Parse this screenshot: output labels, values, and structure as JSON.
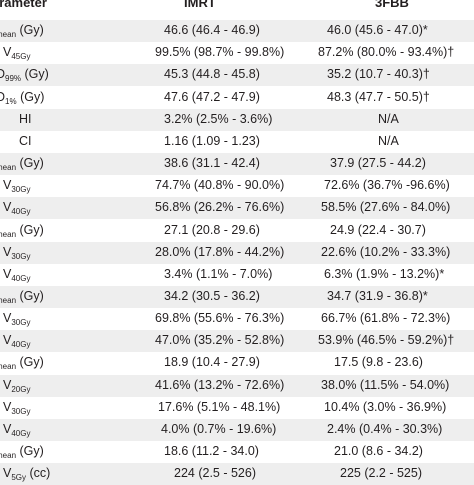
{
  "header": {
    "col0": "arameter",
    "col1": "IMRT",
    "col2": "3FBB"
  },
  "rows": [
    {
      "param": "mean",
      "sub": "",
      "unit": " (Gy)",
      "imrt": "46.6 (46.4 - 46.9)",
      "fbb": "46.0 (45.6 - 47.0)*"
    },
    {
      "param": "V",
      "sub": "45Gy",
      "unit": "",
      "imrt": "99.5% (98.7% - 99.8%)",
      "fbb": "87.2% (80.0% - 93.4%)†"
    },
    {
      "param": "D",
      "sub": "99%",
      "unit": " (Gy)",
      "imrt": "45.3 (44.8 - 45.8)",
      "fbb": "35.2 (10.7 - 40.3)†"
    },
    {
      "param": "D",
      "sub": "1%",
      "unit": " (Gy)",
      "imrt": "47.6 (47.2 - 47.9)",
      "fbb": "48.3 (47.7 - 50.5)†"
    },
    {
      "param": "HI",
      "sub": "",
      "unit": "",
      "imrt": "3.2% (2.5% - 3.6%)",
      "fbb": "N/A"
    },
    {
      "param": "CI",
      "sub": "",
      "unit": "",
      "imrt": "1.16 (1.09 - 1.23)",
      "fbb": "N/A"
    },
    {
      "param": "mean",
      "sub": "",
      "unit": " (Gy)",
      "imrt": "38.6 (31.1 - 42.4)",
      "fbb": "37.9 (27.5 - 44.2)"
    },
    {
      "param": "V",
      "sub": "30Gy",
      "unit": "",
      "imrt": "74.7% (40.8% - 90.0%)",
      "fbb": "72.6% (36.7% -96.6%)"
    },
    {
      "param": "V",
      "sub": "40Gy",
      "unit": "",
      "imrt": "56.8% (26.2% - 76.6%)",
      "fbb": "58.5% (27.6% - 84.0%)"
    },
    {
      "param": "mean",
      "sub": "",
      "unit": " (Gy)",
      "imrt": "27.1 (20.8 - 29.6)",
      "fbb": "24.9 (22.4 - 30.7)"
    },
    {
      "param": "V",
      "sub": "30Gy",
      "unit": "",
      "imrt": "28.0% (17.8% - 44.2%)",
      "fbb": "22.6% (10.2% - 33.3%)"
    },
    {
      "param": "V",
      "sub": "40Gy",
      "unit": "",
      "imrt": "3.4% (1.1% - 7.0%)",
      "fbb": "6.3% (1.9% - 13.2%)*"
    },
    {
      "param": "mean",
      "sub": "",
      "unit": " (Gy)",
      "imrt": "34.2 (30.5 - 36.2)",
      "fbb": "34.7 (31.9 - 36.8)*"
    },
    {
      "param": "V",
      "sub": "30Gy",
      "unit": "",
      "imrt": "69.8% (55.6% - 76.3%)",
      "fbb": "66.7% (61.8% - 72.3%)"
    },
    {
      "param": "V",
      "sub": "40Gy",
      "unit": "",
      "imrt": "47.0% (35.2% - 52.8%)",
      "fbb": "53.9% (46.5% - 59.2%)†"
    },
    {
      "param": "mean",
      "sub": "",
      "unit": " (Gy)",
      "imrt": "18.9 (10.4 - 27.9)",
      "fbb": "17.5 (9.8 - 23.6)"
    },
    {
      "param": "V",
      "sub": "20Gy",
      "unit": "",
      "imrt": "41.6% (13.2% - 72.6%)",
      "fbb": "38.0% (11.5% - 54.0%)"
    },
    {
      "param": "V",
      "sub": "30Gy",
      "unit": "",
      "imrt": "17.6% (5.1% - 48.1%)",
      "fbb": "10.4% (3.0% - 36.9%)"
    },
    {
      "param": "V",
      "sub": "40Gy",
      "unit": "",
      "imrt": "4.0% (0.7% - 19.6%)",
      "fbb": "2.4% (0.4% - 30.3%)"
    },
    {
      "param": "mean",
      "sub": "",
      "unit": " (Gy)",
      "imrt": "18.6 (11.2 - 34.0)",
      "fbb": "21.0 (8.6 - 34.2)"
    },
    {
      "param": "V",
      "sub": "5Gy",
      "unit": " (cc)",
      "imrt": "224 (2.5 - 526)",
      "fbb": "225 (2.2 - 525)"
    }
  ]
}
